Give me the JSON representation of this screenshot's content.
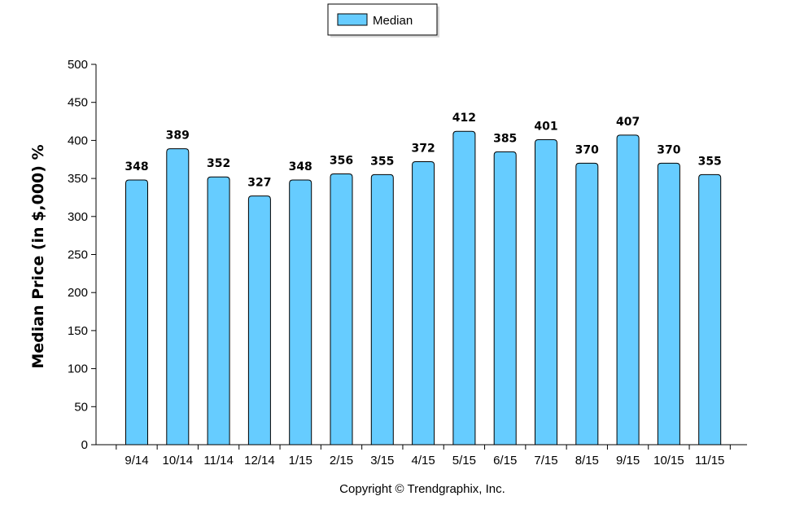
{
  "chart_data": {
    "type": "bar",
    "categories": [
      "9/14",
      "10/14",
      "11/14",
      "12/14",
      "1/15",
      "2/15",
      "3/15",
      "4/15",
      "5/15",
      "6/15",
      "7/15",
      "8/15",
      "9/15",
      "10/15",
      "11/15"
    ],
    "series": [
      {
        "name": "Median",
        "values": [
          348,
          389,
          352,
          327,
          348,
          356,
          355,
          372,
          412,
          385,
          401,
          370,
          407,
          370,
          355
        ],
        "color": "#66ccff"
      }
    ],
    "ylabel": "Median Price (in $,000) %",
    "xlabel": "",
    "ylim": [
      0,
      500
    ],
    "yticks": [
      0,
      50,
      100,
      150,
      200,
      250,
      300,
      350,
      400,
      450,
      500
    ],
    "legend_position": "top-center",
    "grid": false,
    "data_labels": true,
    "footer": "Copyright © Trendgraphix, Inc."
  }
}
